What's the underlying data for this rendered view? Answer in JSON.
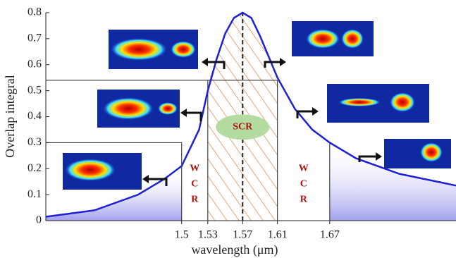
{
  "chart_data": {
    "type": "line",
    "x_label": "wavelength (μm)",
    "y_label": "Overlap integral",
    "x": [
      1.344,
      1.4,
      1.45,
      1.48,
      1.5,
      1.52,
      1.53,
      1.54,
      1.55,
      1.56,
      1.57,
      1.58,
      1.59,
      1.6,
      1.61,
      1.63,
      1.65,
      1.67,
      1.7,
      1.75,
      1.815
    ],
    "series": [
      {
        "color": "#1f1fd6",
        "values": [
          0.015,
          0.04,
          0.1,
          0.16,
          0.21,
          0.35,
          0.5,
          0.62,
          0.72,
          0.78,
          0.8,
          0.78,
          0.71,
          0.63,
          0.55,
          0.43,
          0.35,
          0.3,
          0.24,
          0.18,
          0.135
        ]
      }
    ],
    "xlim": [
      1.344,
      1.815
    ],
    "ylim": [
      0,
      0.8
    ],
    "xticks": [
      1.5,
      1.53,
      1.57,
      1.61,
      1.67
    ],
    "yticks": [
      0,
      0.1,
      0.2,
      0.3,
      0.4,
      0.5,
      0.6,
      0.7,
      0.8
    ],
    "levels": [
      0.3,
      0.54
    ],
    "annotations": {
      "scr": "SCR",
      "wcr_left": [
        "W",
        "C",
        "R"
      ],
      "wcr_right": [
        "W",
        "C",
        "R"
      ]
    }
  }
}
